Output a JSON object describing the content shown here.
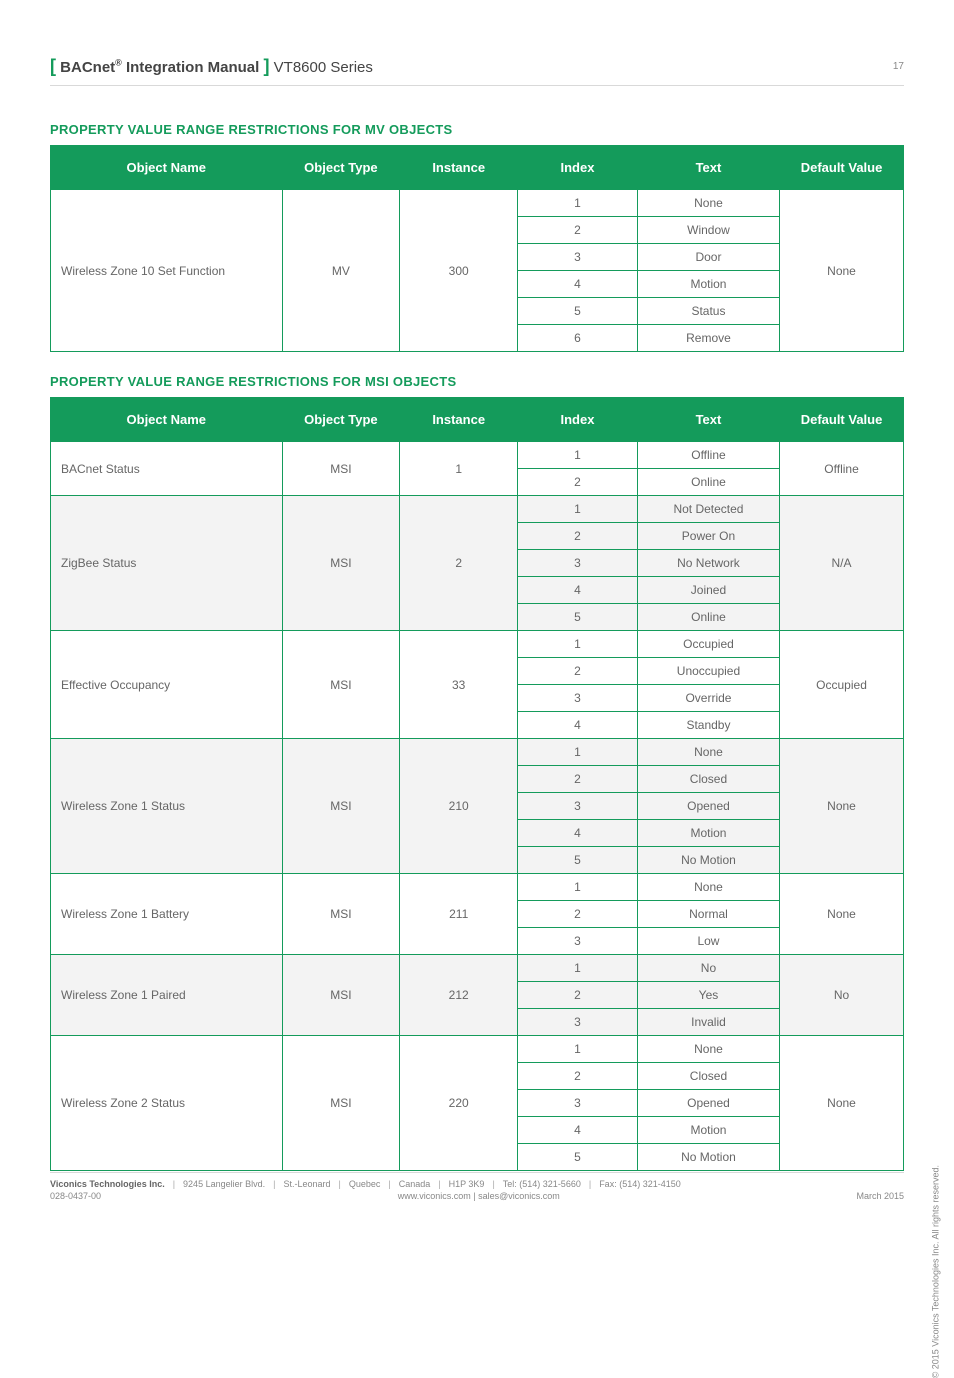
{
  "header": {
    "bracket_open": "[",
    "bracket_close": "]",
    "title_bold": " BACnet",
    "reg_mark": "®",
    "title_rest": " Integration Manual ",
    "series": " VT8600 Series",
    "page_number": "17"
  },
  "sections": {
    "mv_title": "PROPERTY VALUE RANGE RESTRICTIONS FOR MV OBJECTS",
    "msi_title": "PROPERTY VALUE RANGE RESTRICTIONS FOR MSI OBJECTS"
  },
  "columns": [
    "Object Name",
    "Object Type",
    "Instance",
    "Index",
    "Text",
    "Default Value"
  ],
  "mv_table": {
    "groups": [
      {
        "name": "Wireless Zone 10 Set Function",
        "type": "MV",
        "instance": "300",
        "default": "None",
        "group_alt": false,
        "rows": [
          {
            "index": "1",
            "text": "None"
          },
          {
            "index": "2",
            "text": "Window"
          },
          {
            "index": "3",
            "text": "Door"
          },
          {
            "index": "4",
            "text": "Motion"
          },
          {
            "index": "5",
            "text": "Status"
          },
          {
            "index": "6",
            "text": "Remove"
          }
        ]
      }
    ]
  },
  "msi_table": {
    "groups": [
      {
        "name": "BACnet Status",
        "type": "MSI",
        "instance": "1",
        "default": "Offline",
        "group_alt": false,
        "rows": [
          {
            "index": "1",
            "text": "Offline"
          },
          {
            "index": "2",
            "text": "Online"
          }
        ]
      },
      {
        "name": "ZigBee Status",
        "type": "MSI",
        "instance": "2",
        "default": "N/A",
        "group_alt": true,
        "rows": [
          {
            "index": "1",
            "text": "Not Detected"
          },
          {
            "index": "2",
            "text": "Power On"
          },
          {
            "index": "3",
            "text": "No Network"
          },
          {
            "index": "4",
            "text": "Joined"
          },
          {
            "index": "5",
            "text": "Online"
          }
        ]
      },
      {
        "name": "Effective Occupancy",
        "type": "MSI",
        "instance": "33",
        "default": "Occupied",
        "group_alt": false,
        "rows": [
          {
            "index": "1",
            "text": "Occupied"
          },
          {
            "index": "2",
            "text": "Unoccupied"
          },
          {
            "index": "3",
            "text": "Override"
          },
          {
            "index": "4",
            "text": "Standby"
          }
        ]
      },
      {
        "name": "Wireless Zone 1 Status",
        "type": "MSI",
        "instance": "210",
        "default": "None",
        "group_alt": true,
        "rows": [
          {
            "index": "1",
            "text": "None"
          },
          {
            "index": "2",
            "text": "Closed"
          },
          {
            "index": "3",
            "text": "Opened"
          },
          {
            "index": "4",
            "text": "Motion"
          },
          {
            "index": "5",
            "text": "No Motion"
          }
        ]
      },
      {
        "name": "Wireless Zone 1 Battery",
        "type": "MSI",
        "instance": "211",
        "default": "None",
        "group_alt": false,
        "rows": [
          {
            "index": "1",
            "text": "None"
          },
          {
            "index": "2",
            "text": "Normal"
          },
          {
            "index": "3",
            "text": "Low"
          }
        ]
      },
      {
        "name": "Wireless Zone 1 Paired",
        "type": "MSI",
        "instance": "212",
        "default": "No",
        "group_alt": true,
        "rows": [
          {
            "index": "1",
            "text": "No"
          },
          {
            "index": "2",
            "text": "Yes"
          },
          {
            "index": "3",
            "text": "Invalid"
          }
        ]
      },
      {
        "name": "Wireless Zone 2 Status",
        "type": "MSI",
        "instance": "220",
        "default": "None",
        "group_alt": false,
        "rows": [
          {
            "index": "1",
            "text": "None"
          },
          {
            "index": "2",
            "text": "Closed"
          },
          {
            "index": "3",
            "text": "Opened"
          },
          {
            "index": "4",
            "text": "Motion"
          },
          {
            "index": "5",
            "text": "No Motion"
          }
        ]
      }
    ]
  },
  "footer": {
    "company": "Viconics Technologies Inc.",
    "address": "9245 Langelier Blvd.",
    "city": "St.-Leonard",
    "province": "Quebec",
    "country": "Canada",
    "postal": "H1P 3K9",
    "tel": "Tel: (514) 321-5660",
    "fax": "Fax: (514) 321-4150",
    "doc_num": "028-0437-00",
    "web": "www.viconics.com  |  sales@viconics.com",
    "date": "March 2015"
  },
  "copyright": "© 2015 Viconics Technologies Inc. All rights reserved.",
  "styling": {
    "accent_color": "#149b5b",
    "alt_row_bg": "#f3f3f3",
    "page_bg": "#ffffff",
    "text_color": "#666666",
    "border_color": "#149b5b",
    "header_font_size_pt": 15,
    "body_font_size_pt": 12,
    "section_title_font_size_pt": 13
  }
}
